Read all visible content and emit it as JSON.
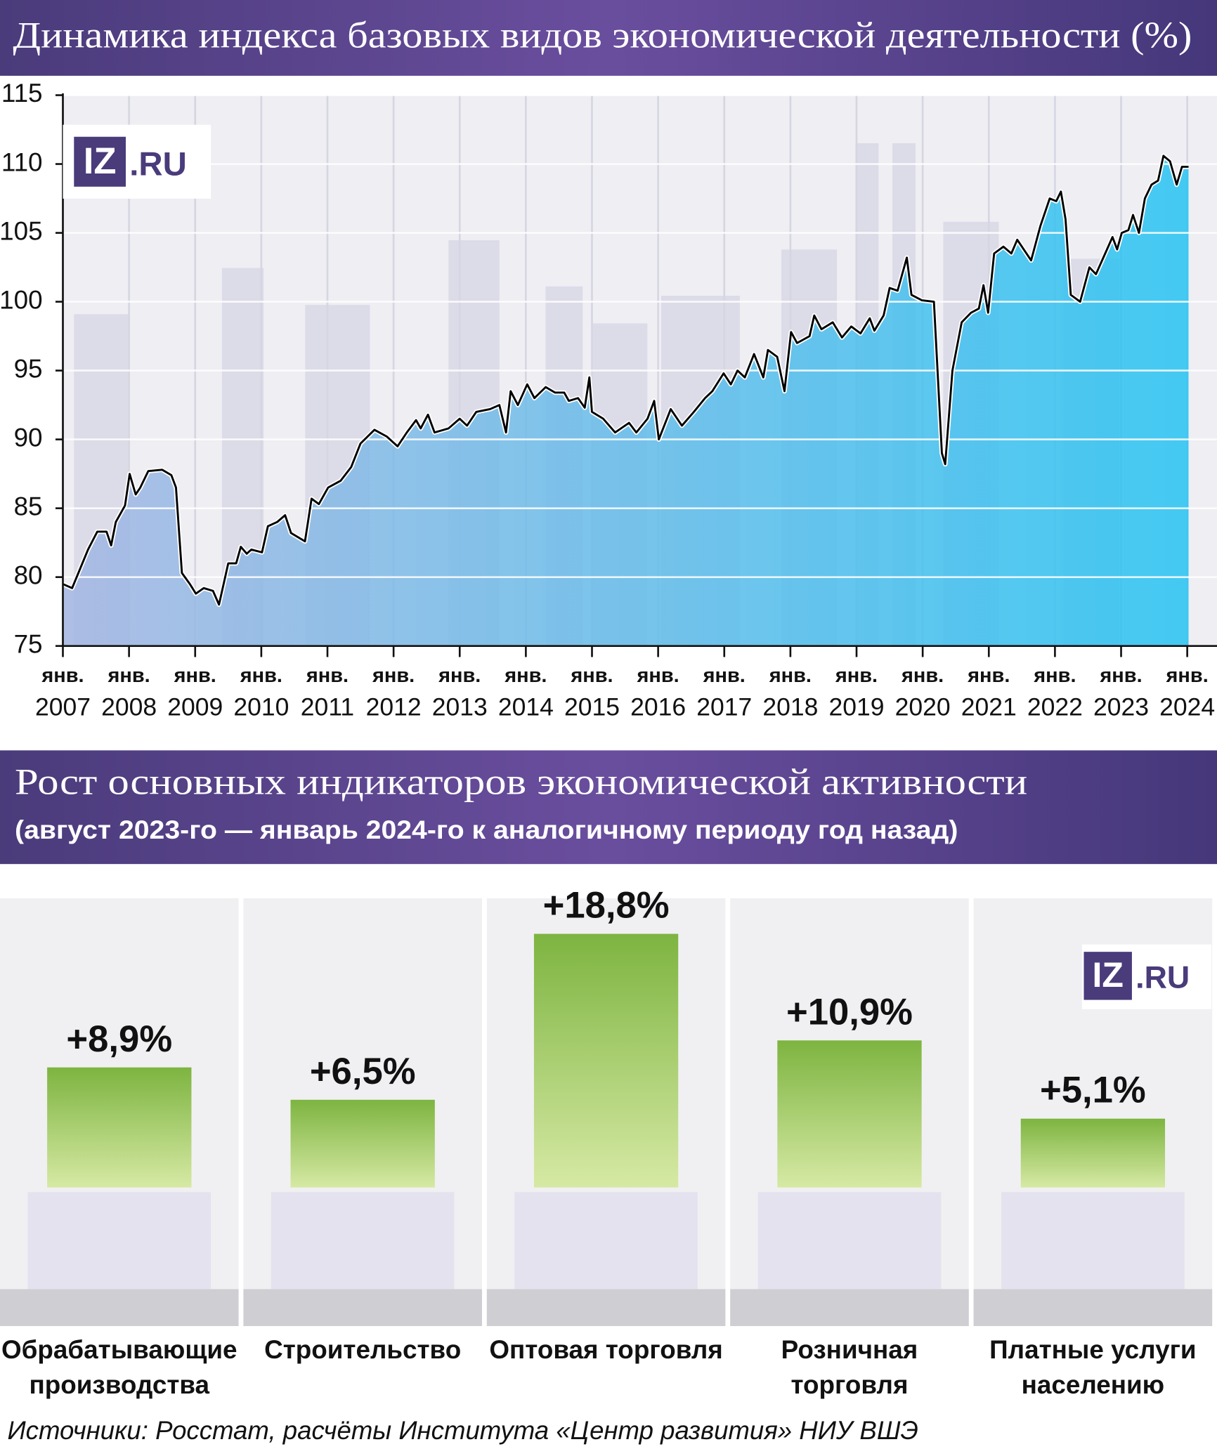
{
  "chart_data": [
    {
      "type": "area",
      "title": "Динамика индекса базовых видов экономической деятельности (%)",
      "brand": {
        "mark": "IZ",
        "domain": ".RU"
      },
      "color": "#000000",
      "fill_colors": [
        "#a3b6e2",
        "#25c3f2"
      ],
      "x": [
        2007.0,
        2007.14,
        2007.38,
        2007.52,
        2007.66,
        2007.73,
        2007.8,
        2007.94,
        2008.01,
        2008.1,
        2008.17,
        2008.29,
        2008.5,
        2008.64,
        2008.71,
        2008.8,
        2008.92,
        2009.01,
        2009.13,
        2009.27,
        2009.36,
        2009.43,
        2009.5,
        2009.62,
        2009.69,
        2009.78,
        2009.85,
        2010.01,
        2010.1,
        2010.24,
        2010.36,
        2010.45,
        2010.66,
        2010.76,
        2010.87,
        2011.01,
        2011.2,
        2011.36,
        2011.5,
        2011.71,
        2011.9,
        2012.06,
        2012.2,
        2012.34,
        2012.41,
        2012.52,
        2012.62,
        2012.83,
        2013.0,
        2013.11,
        2013.25,
        2013.46,
        2013.6,
        2013.7,
        2013.77,
        2013.88,
        2014.02,
        2014.13,
        2014.3,
        2014.44,
        2014.58,
        2014.65,
        2014.79,
        2014.89,
        2014.96,
        2015.0,
        2015.17,
        2015.35,
        2015.56,
        2015.67,
        2015.84,
        2015.94,
        2016.01,
        2016.19,
        2016.36,
        2016.54,
        2016.71,
        2016.82,
        2016.99,
        2017.1,
        2017.2,
        2017.31,
        2017.45,
        2017.59,
        2017.66,
        2017.8,
        2017.91,
        2018.01,
        2018.1,
        2018.29,
        2018.36,
        2018.47,
        2018.64,
        2018.78,
        2018.92,
        2019.06,
        2019.2,
        2019.27,
        2019.41,
        2019.5,
        2019.62,
        2019.76,
        2019.83,
        2019.99,
        2020.17,
        2020.29,
        2020.34,
        2020.45,
        2020.59,
        2020.73,
        2020.85,
        2020.92,
        2020.99,
        2021.08,
        2021.22,
        2021.34,
        2021.43,
        2021.57,
        2021.64,
        2021.78,
        2021.92,
        2022.02,
        2022.09,
        2022.16,
        2022.24,
        2022.38,
        2022.52,
        2022.62,
        2022.76,
        2022.87,
        2022.94,
        2023.01,
        2023.11,
        2023.18,
        2023.27,
        2023.36,
        2023.46,
        2023.56,
        2023.64,
        2023.74,
        2023.84,
        2023.92,
        2024.02
      ],
      "values": [
        79.5,
        79.2,
        82,
        83.3,
        83.3,
        82.3,
        84,
        85.2,
        87.5,
        86,
        86.5,
        87.7,
        87.8,
        87.4,
        86.5,
        80.3,
        79.5,
        78.8,
        79.2,
        79,
        78,
        79.5,
        81,
        81,
        82.2,
        81.7,
        82,
        81.8,
        83.7,
        84,
        84.5,
        83.2,
        82.6,
        85.7,
        85.3,
        86.5,
        87,
        88,
        89.7,
        90.7,
        90.2,
        89.5,
        90.5,
        91.4,
        90.8,
        91.8,
        90.5,
        90.8,
        91.5,
        91,
        92,
        92.2,
        92.5,
        90.5,
        93.5,
        92.5,
        94,
        93,
        93.8,
        93.4,
        93.4,
        92.8,
        93,
        92.3,
        94.5,
        92,
        91.5,
        90.5,
        91.2,
        90.5,
        91.5,
        92.8,
        90,
        92.2,
        91,
        92,
        93,
        93.5,
        94.8,
        94,
        95,
        94.5,
        96.2,
        94.5,
        96.5,
        96,
        93.5,
        97.8,
        97,
        97.5,
        99,
        98,
        98.5,
        97.4,
        98.2,
        97.7,
        98.8,
        97.9,
        99,
        101,
        100.8,
        103.2,
        100.5,
        100.1,
        100,
        89,
        88.2,
        95,
        98.5,
        99.2,
        99.5,
        101.2,
        99.2,
        103.5,
        104,
        103.5,
        104.5,
        103.5,
        103,
        105.5,
        107.5,
        107.3,
        108,
        106,
        100.5,
        100,
        102.5,
        102,
        103.5,
        104.7,
        103.8,
        105,
        105.2,
        106.3,
        105,
        107.5,
        108.5,
        108.8,
        110.6,
        110.2,
        108.5,
        109.8,
        109.8
      ],
      "xlim": [
        2007,
        2024.45
      ],
      "xticks": [
        {
          "value": 2007,
          "label": "янв. 2007"
        },
        {
          "value": 2008,
          "label": "янв. 2008"
        },
        {
          "value": 2009,
          "label": "янв. 2009"
        },
        {
          "value": 2010,
          "label": "янв. 2010"
        },
        {
          "value": 2011,
          "label": "янв. 2011"
        },
        {
          "value": 2012,
          "label": "янв. 2012"
        },
        {
          "value": 2013,
          "label": "янв. 2013"
        },
        {
          "value": 2014,
          "label": "янв. 2014"
        },
        {
          "value": 2015,
          "label": "янв. 2015"
        },
        {
          "value": 2016,
          "label": "янв. 2016"
        },
        {
          "value": 2017,
          "label": "янв. 2017"
        },
        {
          "value": 2018,
          "label": "янв. 2018"
        },
        {
          "value": 2019,
          "label": "янв. 2019"
        },
        {
          "value": 2020,
          "label": "янв. 2020"
        },
        {
          "value": 2021,
          "label": "янв. 2021"
        },
        {
          "value": 2022,
          "label": "янв. 2022"
        },
        {
          "value": 2023,
          "label": "янв. 2023"
        },
        {
          "value": 2024,
          "label": "янв. 2024"
        }
      ],
      "ylim": [
        75,
        115
      ],
      "yticks": [
        75,
        80,
        85,
        90,
        95,
        100,
        105,
        110,
        115
      ],
      "grid": true
    },
    {
      "type": "bar",
      "title": "Рост основных индикаторов экономической активности",
      "subtitle": "(август 2023-го — январь 2024-го к аналогичному периоду год назад)",
      "brand": {
        "mark": "IZ",
        "domain": ".RU"
      },
      "categories": [
        "Обрабатывающие производства",
        "Строительство",
        "Оптовая торговля",
        "Розничная торговля",
        "Платные услуги населению"
      ],
      "values": [
        8.9,
        6.5,
        18.8,
        10.9,
        5.1
      ],
      "value_labels": [
        "+8,9%",
        "+6,5%",
        "+18,8%",
        "+10,9%",
        "+5,1%"
      ],
      "color": "#7db440"
    }
  ],
  "source": "Источники: Росстат, расчёты Института «Центр развития» НИУ ВШЭ"
}
